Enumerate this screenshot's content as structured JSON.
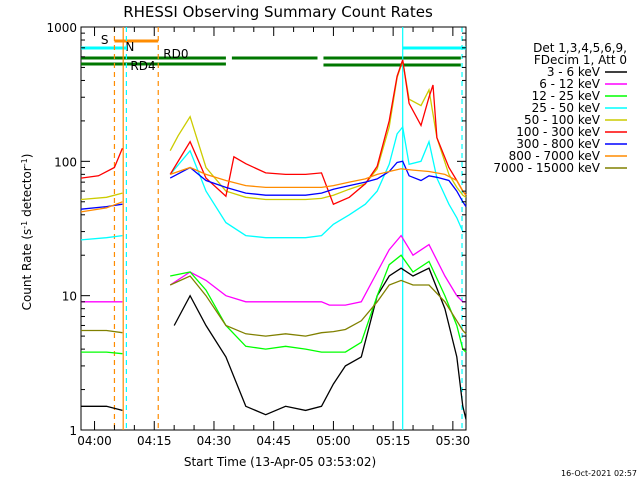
{
  "chart_data": {
    "type": "line",
    "title": "RHESSI Observing Summary Count Rates",
    "xlabel": "Start Time (13-Apr-05 03:53:02)",
    "ylabel": "Count Rate (s",
    "ylabel_sup": "-1",
    "ylabel_rest": " detector",
    "ylabel_close": ")",
    "y_scale": "log",
    "ylim": [
      1,
      1000
    ],
    "xlim_minutes": [
      3.6,
      100.3
    ],
    "x_ticks": [
      {
        "label": "04:00",
        "min": 7
      },
      {
        "label": "04:15",
        "min": 22
      },
      {
        "label": "04:30",
        "min": 37
      },
      {
        "label": "04:45",
        "min": 52
      },
      {
        "label": "05:00",
        "min": 67
      },
      {
        "label": "05:15",
        "min": 82
      },
      {
        "label": "05:30",
        "min": 97
      }
    ],
    "y_ticks": [
      {
        "label": "1",
        "value": 1
      },
      {
        "label": "10",
        "value": 10
      },
      {
        "label": "100",
        "value": 100
      },
      {
        "label": "1000",
        "value": 1000
      }
    ],
    "legend_header": [
      "Det 1,3,4,5,6,9,",
      "FDecim 1, Att 0"
    ],
    "legend_placement": "right",
    "timestamp": "16-Oct-2021 02:57",
    "flags": [
      {
        "label": "S",
        "color": "#ff8c00",
        "start": 12,
        "end": 23,
        "color_label": "#ff8c00"
      },
      {
        "label": "N",
        "color": "#00ffff",
        "start": 3.6,
        "end": 15,
        "color_label": "#00ffff"
      },
      {
        "label": "RD0",
        "color": "#007700",
        "segments": [
          [
            3.6,
            40
          ],
          [
            41.5,
            63
          ],
          [
            64.5,
            99
          ]
        ]
      },
      {
        "label": "RD4",
        "color": "#007700",
        "segments": [
          [
            3.6,
            23
          ]
        ]
      }
    ],
    "vlines": [
      {
        "min": 12,
        "color": "#ff8c00",
        "style": "dashed"
      },
      {
        "min": 14.2,
        "color": "#ff8c00",
        "style": "solid"
      },
      {
        "min": 15,
        "color": "#00ffff",
        "style": "dashed"
      },
      {
        "min": 23,
        "color": "#ff8c00",
        "style": "dashed"
      },
      {
        "min": 84.4,
        "color": "#00ffff",
        "style": "solid"
      },
      {
        "min": 99.3,
        "color": "#00ffff",
        "style": "dashed"
      }
    ],
    "series": [
      {
        "name": "3 - 6 keV",
        "color": "#000000",
        "x": [
          3.6,
          10,
          14,
          23,
          27,
          31,
          35,
          40,
          45,
          50,
          55,
          60,
          64,
          67,
          70,
          74,
          78,
          81,
          84,
          87,
          91,
          95,
          98,
          99.5,
          100.3
        ],
        "y": [
          1.5,
          1.5,
          1.4,
          null,
          6,
          10,
          6,
          3.5,
          1.5,
          1.3,
          1.5,
          1.4,
          1.5,
          2.2,
          3,
          3.5,
          10,
          14,
          16,
          14,
          16,
          8,
          3.5,
          1.5,
          1.2
        ]
      },
      {
        "name": "6 - 12 keV",
        "color": "#ff00ff",
        "x": [
          3.6,
          10,
          14,
          23,
          26,
          31,
          35,
          40,
          45,
          50,
          55,
          60,
          64,
          66,
          70,
          74,
          78,
          81,
          84,
          87,
          91,
          95,
          98,
          99.5,
          100.3
        ],
        "y": [
          9,
          9,
          9,
          null,
          12,
          15,
          13,
          10,
          9,
          9,
          9,
          9,
          9,
          8.5,
          8.5,
          9,
          15,
          22,
          28,
          20,
          24,
          14,
          10,
          9,
          9
        ]
      },
      {
        "name": "12 - 25 keV",
        "color": "#00ff00",
        "x": [
          3.6,
          10,
          14,
          23,
          26,
          31,
          35,
          40,
          45,
          50,
          55,
          60,
          64,
          67,
          70,
          74,
          78,
          81,
          84,
          87,
          91,
          95,
          98,
          99.5,
          100.3
        ],
        "y": [
          3.8,
          3.8,
          3.7,
          null,
          14,
          15,
          11,
          6,
          4.2,
          4,
          4.2,
          4,
          3.8,
          3.8,
          3.8,
          4.5,
          10,
          17,
          20,
          15,
          18,
          10,
          6,
          4,
          3.8
        ]
      },
      {
        "name": "25 - 50 keV",
        "color": "#00ffff",
        "x": [
          3.6,
          10,
          14,
          23,
          26,
          31,
          35,
          40,
          45,
          50,
          55,
          60,
          64,
          67,
          71,
          75,
          78,
          81,
          83,
          84.4,
          86,
          89,
          91,
          93,
          96,
          98,
          99.5,
          100.3
        ],
        "y": [
          26,
          27,
          28,
          null,
          80,
          120,
          60,
          35,
          28,
          27,
          27,
          27,
          28,
          34,
          40,
          48,
          60,
          95,
          160,
          180,
          95,
          100,
          140,
          75,
          48,
          38,
          30,
          30
        ]
      },
      {
        "name": "50 - 100 keV",
        "color": "#cccc00",
        "x": [
          3.6,
          10,
          14,
          23,
          26,
          28,
          31,
          35,
          40,
          45,
          50,
          55,
          60,
          64,
          67,
          71,
          75,
          78,
          81,
          83,
          84.4,
          86,
          89,
          91,
          93,
          96,
          98,
          99.5,
          100.3
        ],
        "y": [
          52,
          54,
          58,
          null,
          120,
          155,
          215,
          90,
          60,
          54,
          52,
          52,
          52,
          53,
          56,
          62,
          68,
          88,
          180,
          420,
          560,
          290,
          260,
          340,
          150,
          80,
          64,
          56,
          54
        ]
      },
      {
        "name": "100 - 300 keV",
        "color": "#ff0000",
        "x": [
          3.6,
          8,
          12,
          14,
          23,
          26,
          31,
          35,
          40,
          42,
          45,
          50,
          55,
          60,
          64,
          67,
          71,
          75,
          78,
          81,
          83,
          84.4,
          86,
          89,
          91,
          92,
          93,
          96,
          98,
          99.5,
          100.3
        ],
        "y": [
          75,
          78,
          90,
          125,
          null,
          80,
          140,
          75,
          55,
          108,
          96,
          82,
          80,
          80,
          82,
          48,
          54,
          68,
          92,
          200,
          430,
          570,
          270,
          185,
          300,
          370,
          150,
          90,
          72,
          60,
          56
        ]
      },
      {
        "name": "300 - 800 keV",
        "color": "#0000ff",
        "x": [
          3.6,
          10,
          14,
          23,
          26,
          31,
          35,
          40,
          45,
          50,
          55,
          60,
          64,
          67,
          71,
          75,
          78,
          81,
          83,
          84.4,
          86,
          89,
          91,
          93,
          96,
          98,
          99.5,
          100.3
        ],
        "y": [
          44,
          46,
          48,
          null,
          75,
          90,
          72,
          64,
          58,
          56,
          56,
          56,
          58,
          62,
          66,
          70,
          74,
          84,
          98,
          100,
          78,
          72,
          78,
          76,
          72,
          60,
          50,
          46
        ]
      },
      {
        "name": "800 - 7000 keV",
        "color": "#ff8c00",
        "x": [
          3.6,
          10,
          14,
          23,
          26,
          31,
          35,
          40,
          45,
          50,
          55,
          60,
          64,
          67,
          71,
          75,
          78,
          81,
          84,
          87,
          91,
          95,
          98,
          99.5,
          100.3
        ],
        "y": [
          42,
          45,
          50,
          null,
          80,
          90,
          80,
          72,
          66,
          64,
          64,
          64,
          64,
          66,
          70,
          74,
          80,
          84,
          88,
          86,
          84,
          80,
          72,
          60,
          56
        ]
      },
      {
        "name": "7000 - 15000 keV",
        "color": "#808000",
        "x": [
          3.6,
          10,
          14,
          23,
          26,
          31,
          35,
          40,
          45,
          50,
          55,
          60,
          64,
          67,
          70,
          74,
          78,
          81,
          84,
          87,
          91,
          95,
          98,
          99.5,
          100.3
        ],
        "y": [
          5.5,
          5.5,
          5.3,
          null,
          12,
          14,
          10,
          6,
          5.2,
          5,
          5.2,
          5,
          5.3,
          5.4,
          5.6,
          6.5,
          9,
          12,
          13,
          12,
          12,
          9,
          6.5,
          5.5,
          5.2
        ]
      }
    ]
  }
}
